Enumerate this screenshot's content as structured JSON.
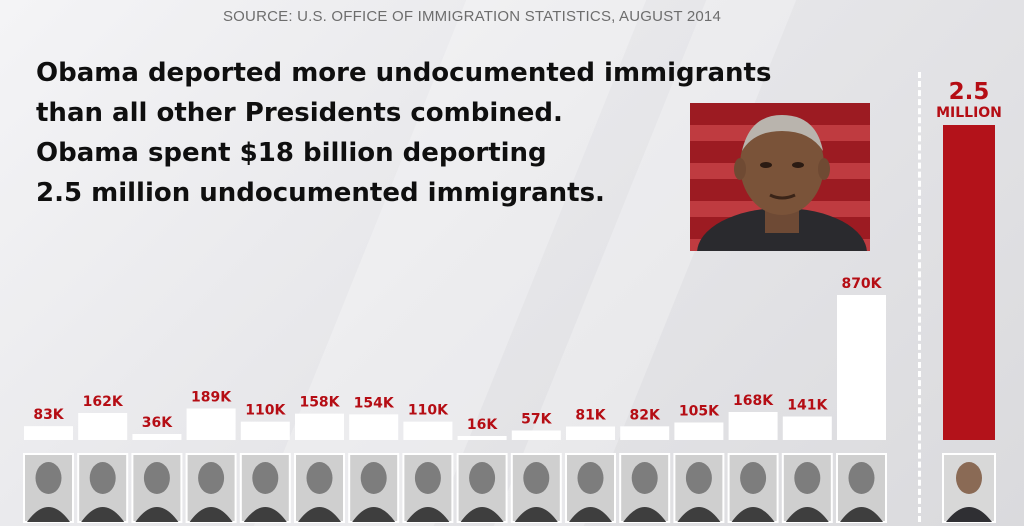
{
  "source": "SOURCE: U.S. OFFICE OF IMMIGRATION STATISTICS, AUGUST 2014",
  "headline": [
    "Obama deported more undocumented immigrants",
    "than all other Presidents combined.",
    "Obama spent $18 billion deporting",
    "2.5 million undocumented immigrants."
  ],
  "colors": {
    "bar": "#ffffff",
    "label": "#b50d14",
    "highlight_bar": "#b3121a"
  },
  "chart_data": [
    {
      "type": "bar",
      "values": [
        83,
        162,
        36,
        189,
        110,
        158,
        154,
        110,
        16,
        57,
        81,
        82,
        105,
        168,
        141,
        870
      ],
      "value_labels": [
        "83K",
        "162K",
        "36K",
        "189K",
        "110K",
        "158K",
        "154K",
        "110K",
        "16K",
        "57K",
        "81K",
        "82K",
        "105K",
        "168K",
        "141K",
        "870K"
      ],
      "unit": "K",
      "bar_color": "#ffffff",
      "ylim": [
        0,
        870
      ],
      "grid": false,
      "title": "",
      "xlabel": "",
      "ylabel": ""
    },
    {
      "type": "bar",
      "values": [
        2500
      ],
      "value_label_number": "2.5",
      "value_label_unit": "MILLION",
      "bar_color": "#b3121a",
      "title": "",
      "xlabel": "",
      "ylabel": ""
    }
  ]
}
